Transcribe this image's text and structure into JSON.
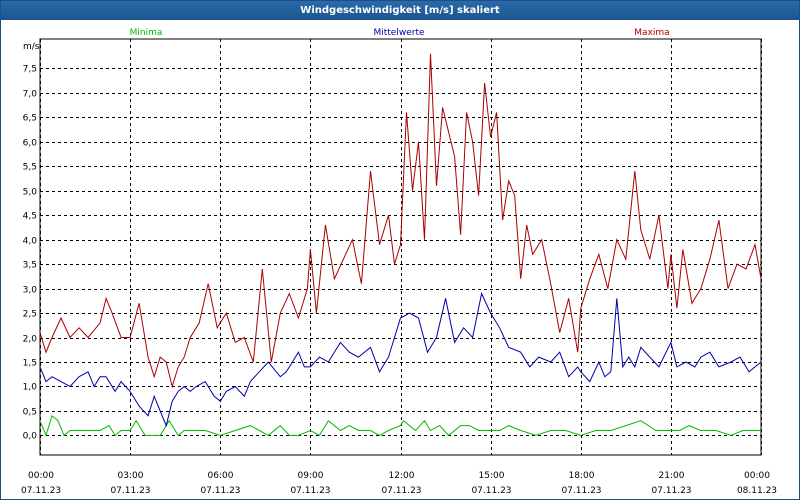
{
  "window": {
    "title": "Windgeschwindigkeit [m/s] skaliert"
  },
  "chart_data": {
    "type": "line",
    "title": "Windgeschwindigkeit [m/s] skaliert",
    "ylabel": "m/s",
    "xlabel": "",
    "ylim": [
      -0.4,
      8.1
    ],
    "yticks": [
      0.0,
      0.5,
      1.0,
      1.5,
      2.0,
      2.5,
      3.0,
      3.5,
      4.0,
      4.5,
      5.0,
      5.5,
      6.0,
      6.5,
      7.0,
      7.5
    ],
    "ytick_labels": [
      "0,0",
      "0,5",
      "1,0",
      "1,5",
      "2,0",
      "2,5",
      "3,0",
      "3,5",
      "4,0",
      "4,5",
      "5,0",
      "5,5",
      "6,0",
      "6,5",
      "7,0",
      "7,5"
    ],
    "xlim": [
      0,
      24
    ],
    "xticks": [
      0,
      3,
      6,
      9,
      12,
      15,
      18,
      21,
      24
    ],
    "xtick_times": [
      "00:00",
      "03:00",
      "06:00",
      "09:00",
      "12:00",
      "15:00",
      "18:00",
      "21:00",
      "00:00"
    ],
    "xtick_dates": [
      "07.11.23",
      "07.11.23",
      "07.11.23",
      "07.11.23",
      "07.11.23",
      "07.11.23",
      "07.11.23",
      "07.11.23",
      "08.11.23"
    ],
    "grid": true,
    "legend_position": "top",
    "series": [
      {
        "name": "Minima",
        "color": "#00bb00",
        "x": [
          0,
          0.2,
          0.4,
          0.6,
          0.8,
          1.0,
          1.2,
          1.5,
          2.0,
          2.3,
          2.5,
          2.7,
          3.0,
          3.2,
          3.5,
          3.7,
          4.0,
          4.3,
          4.6,
          4.8,
          5.0,
          5.5,
          6.0,
          6.5,
          7.0,
          7.3,
          7.6,
          8.0,
          8.3,
          8.6,
          9.0,
          9.3,
          9.6,
          10.0,
          10.3,
          10.6,
          11.0,
          11.3,
          11.6,
          12.0,
          12.1,
          12.3,
          12.5,
          12.8,
          13.0,
          13.3,
          13.6,
          14.0,
          14.3,
          14.6,
          15.0,
          15.3,
          15.6,
          16.0,
          16.5,
          17.0,
          17.5,
          18.0,
          18.5,
          19.0,
          19.5,
          20.0,
          20.5,
          21.0,
          21.3,
          21.6,
          22.0,
          22.5,
          23.0,
          23.4,
          23.7,
          24.0
        ],
        "y": [
          0.3,
          0.0,
          0.4,
          0.3,
          0.0,
          0.1,
          0.1,
          0.1,
          0.1,
          0.2,
          0.0,
          0.1,
          0.1,
          0.3,
          0.0,
          0.0,
          0.0,
          0.3,
          0.0,
          0.1,
          0.1,
          0.1,
          0.0,
          0.1,
          0.2,
          0.1,
          0.0,
          0.2,
          0.0,
          0.0,
          0.1,
          0.0,
          0.3,
          0.1,
          0.2,
          0.1,
          0.1,
          0.0,
          0.1,
          0.2,
          0.3,
          0.2,
          0.1,
          0.3,
          0.1,
          0.2,
          0.0,
          0.2,
          0.2,
          0.1,
          0.1,
          0.1,
          0.2,
          0.1,
          0.0,
          0.1,
          0.1,
          0.0,
          0.1,
          0.1,
          0.2,
          0.3,
          0.1,
          0.1,
          0.1,
          0.2,
          0.1,
          0.1,
          0.0,
          0.1,
          0.1,
          0.1
        ]
      },
      {
        "name": "Mittelwerte",
        "color": "#0000aa",
        "x": [
          0,
          0.2,
          0.4,
          0.7,
          1.0,
          1.3,
          1.6,
          1.8,
          2.0,
          2.2,
          2.5,
          2.7,
          3.0,
          3.3,
          3.6,
          3.8,
          4.0,
          4.2,
          4.4,
          4.6,
          4.8,
          5.0,
          5.2,
          5.5,
          5.8,
          6.0,
          6.2,
          6.5,
          6.8,
          7.0,
          7.3,
          7.6,
          8.0,
          8.2,
          8.4,
          8.6,
          8.8,
          9.0,
          9.3,
          9.6,
          10.0,
          10.3,
          10.6,
          11.0,
          11.3,
          11.6,
          12.0,
          12.3,
          12.6,
          12.9,
          13.2,
          13.5,
          13.8,
          14.1,
          14.4,
          14.7,
          15.0,
          15.3,
          15.6,
          16.0,
          16.3,
          16.6,
          17.0,
          17.3,
          17.6,
          17.9,
          18.0,
          18.3,
          18.6,
          18.8,
          19.0,
          19.2,
          19.4,
          19.6,
          19.8,
          20.0,
          20.3,
          20.6,
          21.0,
          21.2,
          21.5,
          21.8,
          22.0,
          22.3,
          22.6,
          23.0,
          23.3,
          23.6,
          23.8,
          24.0
        ],
        "y": [
          1.4,
          1.1,
          1.2,
          1.1,
          1.0,
          1.2,
          1.3,
          1.0,
          1.2,
          1.2,
          0.9,
          1.1,
          0.9,
          0.6,
          0.4,
          0.8,
          0.5,
          0.2,
          0.7,
          0.9,
          1.0,
          0.9,
          1.0,
          1.1,
          0.8,
          0.7,
          0.9,
          1.0,
          0.8,
          1.1,
          1.3,
          1.5,
          1.2,
          1.3,
          1.5,
          1.7,
          1.4,
          1.4,
          1.6,
          1.5,
          1.9,
          1.7,
          1.6,
          1.8,
          1.3,
          1.6,
          2.4,
          2.5,
          2.4,
          1.7,
          2.0,
          2.8,
          1.9,
          2.2,
          2.0,
          2.9,
          2.5,
          2.2,
          1.8,
          1.7,
          1.4,
          1.6,
          1.5,
          1.7,
          1.2,
          1.4,
          1.3,
          1.1,
          1.5,
          1.2,
          1.3,
          2.8,
          1.4,
          1.6,
          1.4,
          1.8,
          1.6,
          1.4,
          1.9,
          1.4,
          1.5,
          1.4,
          1.6,
          1.7,
          1.4,
          1.5,
          1.6,
          1.3,
          1.4,
          1.5
        ]
      },
      {
        "name": "Maxima",
        "color": "#aa0000",
        "x": [
          0,
          0.2,
          0.4,
          0.7,
          1.0,
          1.3,
          1.6,
          2.0,
          2.2,
          2.4,
          2.7,
          3.0,
          3.3,
          3.6,
          3.8,
          4.0,
          4.2,
          4.4,
          4.6,
          4.8,
          5.0,
          5.3,
          5.6,
          5.9,
          6.2,
          6.5,
          6.8,
          7.1,
          7.4,
          7.7,
          8.0,
          8.3,
          8.6,
          8.9,
          9.0,
          9.2,
          9.5,
          9.8,
          10.1,
          10.4,
          10.7,
          11.0,
          11.3,
          11.6,
          11.8,
          12.0,
          12.2,
          12.4,
          12.6,
          12.8,
          13.0,
          13.2,
          13.4,
          13.6,
          13.8,
          14.0,
          14.2,
          14.4,
          14.6,
          14.8,
          15.0,
          15.2,
          15.4,
          15.6,
          15.8,
          16.0,
          16.2,
          16.4,
          16.7,
          17.0,
          17.3,
          17.6,
          17.9,
          18.0,
          18.3,
          18.6,
          18.9,
          19.2,
          19.5,
          19.8,
          20.0,
          20.3,
          20.6,
          20.9,
          21.0,
          21.2,
          21.4,
          21.7,
          22.0,
          22.3,
          22.6,
          22.9,
          23.2,
          23.5,
          23.8,
          24.0
        ],
        "y": [
          2.1,
          1.7,
          2.0,
          2.4,
          2.0,
          2.2,
          2.0,
          2.3,
          2.8,
          2.5,
          2.0,
          2.0,
          2.7,
          1.6,
          1.2,
          1.6,
          1.5,
          1.0,
          1.4,
          1.6,
          2.0,
          2.3,
          3.1,
          2.2,
          2.5,
          1.9,
          2.0,
          1.5,
          3.4,
          1.5,
          2.5,
          2.9,
          2.4,
          3.0,
          3.8,
          2.5,
          4.3,
          3.2,
          3.6,
          4.0,
          3.1,
          5.4,
          3.9,
          4.5,
          3.5,
          3.9,
          6.6,
          5.0,
          6.0,
          4.0,
          7.8,
          5.1,
          6.7,
          6.2,
          5.7,
          4.1,
          6.6,
          6.0,
          4.9,
          7.2,
          6.1,
          6.6,
          4.4,
          5.2,
          4.9,
          3.2,
          4.3,
          3.7,
          4.0,
          3.1,
          2.1,
          2.8,
          1.7,
          2.6,
          3.2,
          3.7,
          3.0,
          4.0,
          3.6,
          5.4,
          4.2,
          3.6,
          4.5,
          3.0,
          3.7,
          2.6,
          3.8,
          2.7,
          3.0,
          3.6,
          4.4,
          3.0,
          3.5,
          3.4,
          3.9,
          3.2
        ]
      }
    ]
  }
}
